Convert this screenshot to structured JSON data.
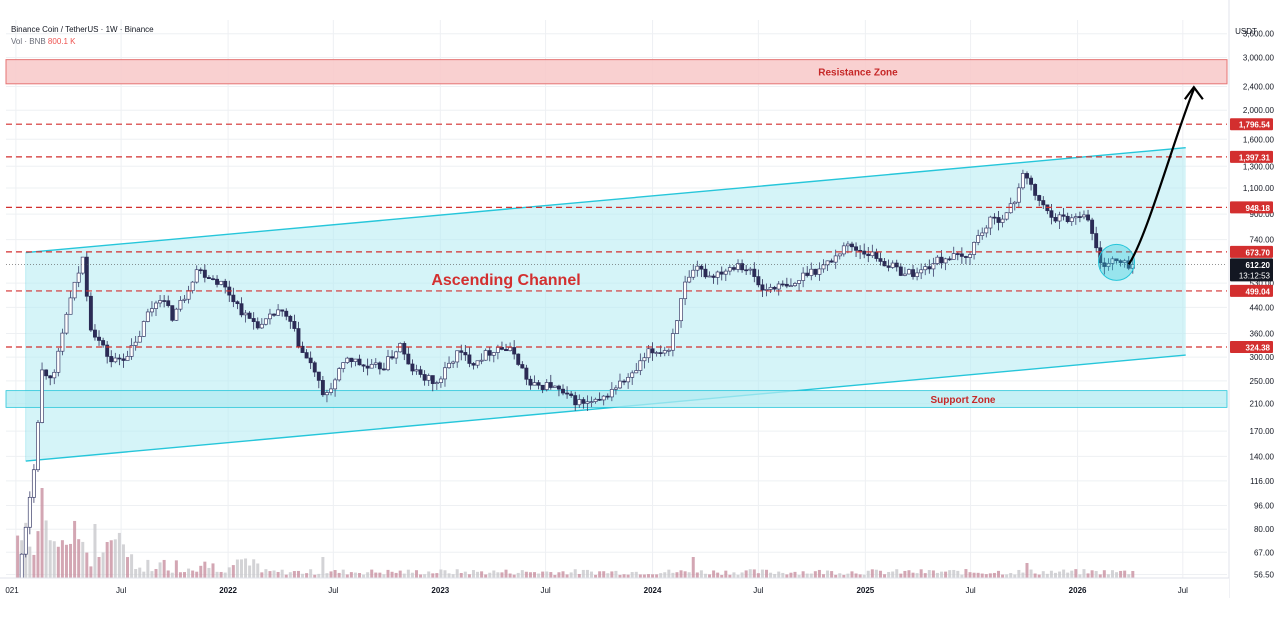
{
  "header": {
    "symbol": "Binance Coin / TetherUS · 1W · Binance",
    "vol_label": "Vol · BNB",
    "vol_value": "800.1 K"
  },
  "colors": {
    "channel_fill": "#b2ebf2",
    "channel_line": "#26c6da",
    "resistance_fill": "#f8c8c8",
    "resistance_line": "#e57373",
    "level_line": "#d32f2f",
    "candle_bull": "#ffffff",
    "candle_bear": "#2b2b55",
    "vol_up": "#c8c8cc",
    "vol_down": "#c890a0",
    "arrow": "#000000"
  },
  "chart_data": {
    "type": "candlestick",
    "title": "Binance Coin / TetherUS · 1W · Binance",
    "y_unit": "USDT",
    "y_scale": "log",
    "y_range": [
      55,
      4000
    ],
    "y_ticks": [
      56.5,
      67,
      80,
      96,
      116,
      140,
      170,
      210,
      250,
      300,
      360,
      440,
      530,
      740,
      900,
      1100,
      1300,
      1600,
      2000,
      2400,
      3000,
      3600
    ],
    "y_tick_labels": [
      "56.50",
      "67.00",
      "80.00",
      "96.00",
      "116.00",
      "140.00",
      "170.00",
      "210.00",
      "250.00",
      "300.00",
      "360.00",
      "440.00",
      "530.00",
      "740.00",
      "900.00",
      "1,100.00",
      "1,300.00",
      "1,600.00",
      "2,000.00",
      "2,400.00",
      "3,000.00",
      "3,600.00"
    ],
    "x_ticks": [
      {
        "date": "2021-01-01",
        "label": "021"
      },
      {
        "date": "2021-07-01",
        "label": "Jul"
      },
      {
        "date": "2022-01-01",
        "label": "2022"
      },
      {
        "date": "2022-07-01",
        "label": "Jul"
      },
      {
        "date": "2023-01-01",
        "label": "2023"
      },
      {
        "date": "2023-07-01",
        "label": "Jul"
      },
      {
        "date": "2024-01-01",
        "label": "2024"
      },
      {
        "date": "2024-07-01",
        "label": "Jul"
      },
      {
        "date": "2025-01-01",
        "label": "2025"
      },
      {
        "date": "2025-07-01",
        "label": "Jul"
      },
      {
        "date": "2026-01-01",
        "label": "2026"
      },
      {
        "date": "2026-07-01",
        "label": "Jul"
      }
    ],
    "x_range": [
      "2020-12-15",
      "2026-09-15"
    ],
    "price_path": [
      [
        "2021-01-01",
        38
      ],
      [
        "2021-02-08",
        130
      ],
      [
        "2021-02-22",
        270
      ],
      [
        "2021-03-15",
        260
      ],
      [
        "2021-04-05",
        420
      ],
      [
        "2021-04-19",
        520
      ],
      [
        "2021-05-03",
        640
      ],
      [
        "2021-05-17",
        380
      ],
      [
        "2021-05-31",
        340
      ],
      [
        "2021-06-21",
        290
      ],
      [
        "2021-07-12",
        300
      ],
      [
        "2021-08-02",
        330
      ],
      [
        "2021-08-23",
        420
      ],
      [
        "2021-09-13",
        480
      ],
      [
        "2021-10-04",
        410
      ],
      [
        "2021-10-25",
        480
      ],
      [
        "2021-11-15",
        590
      ],
      [
        "2021-12-06",
        560
      ],
      [
        "2021-12-27",
        530
      ],
      [
        "2022-01-17",
        470
      ],
      [
        "2022-02-07",
        410
      ],
      [
        "2022-03-07",
        380
      ],
      [
        "2022-04-04",
        430
      ],
      [
        "2022-04-25",
        390
      ],
      [
        "2022-05-16",
        310
      ],
      [
        "2022-06-06",
        270
      ],
      [
        "2022-06-20",
        220
      ],
      [
        "2022-07-11",
        250
      ],
      [
        "2022-08-01",
        300
      ],
      [
        "2022-09-05",
        275
      ],
      [
        "2022-10-03",
        280
      ],
      [
        "2022-10-31",
        330
      ],
      [
        "2022-11-14",
        280
      ],
      [
        "2022-12-05",
        260
      ],
      [
        "2023-01-02",
        245
      ],
      [
        "2023-02-06",
        310
      ],
      [
        "2023-03-06",
        290
      ],
      [
        "2023-04-17",
        325
      ],
      [
        "2023-05-15",
        310
      ],
      [
        "2023-06-12",
        240
      ],
      [
        "2023-07-17",
        242
      ],
      [
        "2023-08-14",
        220
      ],
      [
        "2023-09-11",
        210
      ],
      [
        "2023-10-09",
        212
      ],
      [
        "2023-11-06",
        240
      ],
      [
        "2023-12-04",
        260
      ],
      [
        "2024-01-01",
        310
      ],
      [
        "2024-02-05",
        320
      ],
      [
        "2024-03-04",
        520
      ],
      [
        "2024-03-25",
        590
      ],
      [
        "2024-04-15",
        560
      ],
      [
        "2024-05-13",
        590
      ],
      [
        "2024-06-03",
        620
      ],
      [
        "2024-06-24",
        580
      ],
      [
        "2024-07-15",
        500
      ],
      [
        "2024-08-05",
        520
      ],
      [
        "2024-09-02",
        510
      ],
      [
        "2024-09-30",
        580
      ],
      [
        "2024-10-21",
        590
      ],
      [
        "2024-11-18",
        650
      ],
      [
        "2024-12-02",
        710
      ],
      [
        "2024-12-23",
        690
      ],
      [
        "2025-01-20",
        660
      ],
      [
        "2025-02-10",
        620
      ],
      [
        "2025-03-10",
        580
      ],
      [
        "2025-04-07",
        570
      ],
      [
        "2025-05-05",
        620
      ],
      [
        "2025-06-02",
        650
      ],
      [
        "2025-06-30",
        640
      ],
      [
        "2025-07-21",
        760
      ],
      [
        "2025-08-11",
        850
      ],
      [
        "2025-09-08",
        900
      ],
      [
        "2025-09-22",
        1000
      ],
      [
        "2025-10-06",
        1250
      ],
      [
        "2025-10-20",
        1100
      ],
      [
        "2025-11-10",
        950
      ],
      [
        "2025-12-01",
        880
      ],
      [
        "2025-12-29",
        870
      ],
      [
        "2026-01-19",
        920
      ],
      [
        "2026-02-02",
        780
      ],
      [
        "2026-02-16",
        610
      ],
      [
        "2026-03-09",
        630
      ],
      [
        "2026-03-30",
        612
      ]
    ],
    "volume_spikes": [
      [
        "2021-02-15",
        30
      ],
      [
        "2021-05-17",
        18
      ],
      [
        "2021-06-07",
        12
      ],
      [
        "2022-06-13",
        7
      ],
      [
        "2024-03-11",
        7
      ],
      [
        "2025-10-06",
        5
      ]
    ],
    "channel": {
      "upper": [
        [
          "2021-01-18",
          670
        ],
        [
          "2026-07-06",
          1500
        ]
      ],
      "lower": [
        [
          "2021-01-18",
          135
        ],
        [
          "2026-07-06",
          305
        ]
      ],
      "label": "Ascending Channel"
    },
    "resistance_zone": {
      "low": 2450,
      "high": 2950,
      "label": "Resistance Zone"
    },
    "support_zone": {
      "low": 204,
      "high": 232,
      "label": "Support Zone"
    },
    "levels": [
      {
        "value": 1796.54,
        "label": "1,796.54"
      },
      {
        "value": 1397.31,
        "label": "1,397.31"
      },
      {
        "value": 948.18,
        "label": "948.18"
      },
      {
        "value": 673.7,
        "label": "673.70"
      },
      {
        "value": 499.04,
        "label": "499.04"
      },
      {
        "value": 324.38,
        "label": "324.38"
      }
    ],
    "current": {
      "price": 612.2,
      "label": "612.20",
      "countdown": "13:12:53"
    },
    "projection": [
      [
        "2026-03-30",
        612
      ],
      [
        "2026-05-01",
        760
      ],
      [
        "2026-06-15",
        1600
      ],
      [
        "2026-07-20",
        2350
      ]
    ],
    "highlight_circle": {
      "date": "2026-03-09",
      "value": 612
    }
  }
}
